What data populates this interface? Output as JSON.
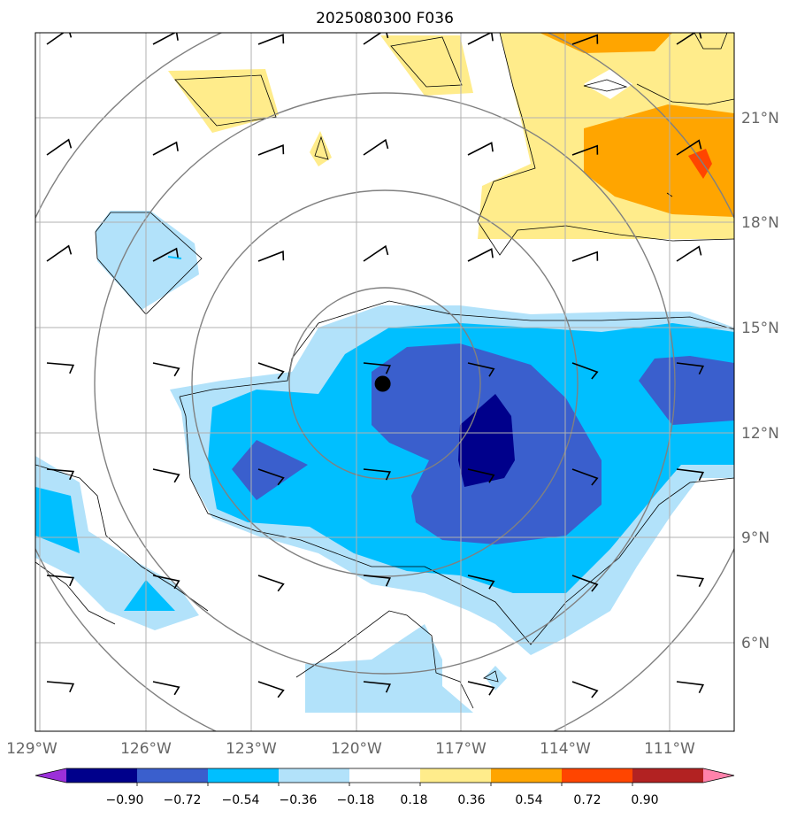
{
  "title": "2025080300 F036",
  "lon_labels": [
    "129°W",
    "126°W",
    "123°W",
    "120°W",
    "117°W",
    "114°W",
    "111°W"
  ],
  "lat_labels": [
    "21°N",
    "18°N",
    "15°N",
    "12°N",
    "9°N",
    "6°N"
  ],
  "colorbar": {
    "tick_labels": [
      "−0.90",
      "−0.72",
      "−0.54",
      "−0.36",
      "−0.18",
      "0.18",
      "0.36",
      "0.54",
      "0.72",
      "0.90"
    ],
    "colors": [
      "#9b30d9",
      "#00008b",
      "#3a5fcd",
      "#00bfff",
      "#b2e2fa",
      "#ffffff",
      "#ffec8b",
      "#ffa500",
      "#ff4500",
      "#b22222",
      "#ff82ab"
    ]
  },
  "levels": {
    "neg_090": "#00008b",
    "neg_072": "#3a5fcd",
    "neg_054": "#00bfff",
    "neg_036": "#b2e2fa",
    "pos_018": "#ffec8b",
    "pos_036": "#ffa500",
    "pos_054": "#ff4500"
  },
  "storm_center": {
    "lon": -119.2,
    "lat": 13.4
  }
}
